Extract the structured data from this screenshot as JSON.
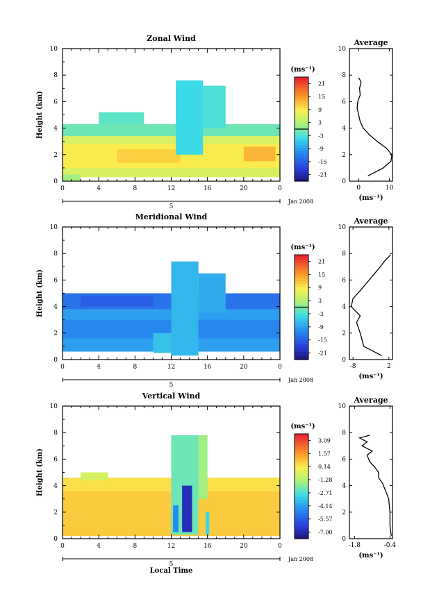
{
  "chart_data": [
    {
      "type": "heatmap",
      "title": "Zonal Wind",
      "ylabel": "Height (km)",
      "xlabel": "",
      "xlim": [
        0,
        24
      ],
      "ylim": [
        0,
        10
      ],
      "xticks": [
        "0",
        "4",
        "8",
        "12",
        "16",
        "20",
        "0"
      ],
      "yticks": [
        "0",
        "2",
        "4",
        "6",
        "8",
        "10"
      ],
      "date_marker": "5",
      "date_label": "Jan 2008",
      "colorbar": {
        "unit": "(ms⁻¹)",
        "ticks": [
          "21",
          "15",
          "9",
          "3",
          "-3",
          "-9",
          "-15",
          "-21"
        ],
        "min": -24,
        "max": 24,
        "zero_line": 0
      },
      "regions": [
        {
          "x0": 0.0,
          "x1": 24.0,
          "y0": 0.3,
          "y1": 3.4,
          "v": 6
        },
        {
          "x0": 0.0,
          "x1": 24.0,
          "y0": 1.0,
          "y1": 2.8,
          "v": 9
        },
        {
          "x0": 6.0,
          "x1": 13.0,
          "y0": 1.4,
          "y1": 2.4,
          "v": 11
        },
        {
          "x0": 20.0,
          "x1": 23.5,
          "y0": 1.5,
          "y1": 2.6,
          "v": 13
        },
        {
          "x0": 0.0,
          "x1": 24.0,
          "y0": 3.4,
          "y1": 4.3,
          "v": -1
        },
        {
          "x0": 4.0,
          "x1": 9.0,
          "y0": 4.3,
          "y1": 5.2,
          "v": -2
        },
        {
          "x0": 12.5,
          "x1": 15.5,
          "y0": 2.0,
          "y1": 7.6,
          "v": -4
        },
        {
          "x0": 15.5,
          "x1": 18.0,
          "y0": 4.0,
          "y1": 7.2,
          "v": -3
        },
        {
          "x0": 0.0,
          "x1": 2.0,
          "y0": 0.0,
          "y1": 0.5,
          "v": 2
        }
      ],
      "average": {
        "title": "Average",
        "xlabel": "(ms⁻¹)",
        "xlim": [
          -3,
          11
        ],
        "xticks": [
          0,
          10
        ],
        "ylim": [
          0,
          10
        ],
        "yticks": [
          0,
          2,
          4,
          6,
          8,
          10
        ],
        "profile": [
          [
            0.4,
            3
          ],
          [
            1.0,
            8
          ],
          [
            1.5,
            10.5
          ],
          [
            2.0,
            10.8
          ],
          [
            2.5,
            9
          ],
          [
            3.0,
            6
          ],
          [
            3.5,
            3.5
          ],
          [
            4.0,
            1.5
          ],
          [
            4.5,
            0.5
          ],
          [
            5.0,
            0
          ],
          [
            5.5,
            -0.5
          ],
          [
            6.0,
            -0.3
          ],
          [
            6.5,
            0.5
          ],
          [
            7.0,
            0.3
          ],
          [
            7.5,
            0.8
          ],
          [
            7.8,
            0
          ]
        ]
      }
    },
    {
      "type": "heatmap",
      "title": "Meridional Wind",
      "ylabel": "Height (km)",
      "xlabel": "",
      "xlim": [
        0,
        24
      ],
      "ylim": [
        0,
        10
      ],
      "xticks": [
        "0",
        "4",
        "8",
        "12",
        "16",
        "20",
        "0"
      ],
      "yticks": [
        "0",
        "2",
        "4",
        "6",
        "8",
        "10"
      ],
      "date_marker": "5",
      "date_label": "Jan 2008",
      "colorbar": {
        "unit": "(ms⁻¹)",
        "ticks": [
          "21",
          "15",
          "9",
          "3",
          "-3",
          "-9",
          "-15",
          "-21"
        ],
        "min": -24,
        "max": 24,
        "zero_line": 0
      },
      "regions": [
        {
          "x0": 0.0,
          "x1": 24.0,
          "y0": 0.6,
          "y1": 4.0,
          "v": -9
        },
        {
          "x0": 0.0,
          "x1": 24.0,
          "y0": 1.6,
          "y1": 3.0,
          "v": -11
        },
        {
          "x0": 0.0,
          "x1": 24.0,
          "y0": 3.8,
          "y1": 5.0,
          "v": -13
        },
        {
          "x0": 2.0,
          "x1": 10.0,
          "y0": 4.0,
          "y1": 4.8,
          "v": -15
        },
        {
          "x0": 12.0,
          "x1": 15.0,
          "y0": 0.3,
          "y1": 7.4,
          "v": -7
        },
        {
          "x0": 15.0,
          "x1": 18.0,
          "y0": 3.5,
          "y1": 6.5,
          "v": -8
        },
        {
          "x0": 10.0,
          "x1": 12.0,
          "y0": 0.5,
          "y1": 2.0,
          "v": -6
        }
      ],
      "average": {
        "title": "Average",
        "xlabel": "(ms⁻¹)",
        "xlim": [
          -9,
          3
        ],
        "xticks": [
          -8,
          2
        ],
        "ylim": [
          0,
          10
        ],
        "yticks": [
          0,
          2,
          4,
          6,
          8,
          10
        ],
        "profile": [
          [
            0.3,
            0
          ],
          [
            1.0,
            -5
          ],
          [
            2.0,
            -6
          ],
          [
            2.8,
            -7
          ],
          [
            3.3,
            -6
          ],
          [
            4.0,
            -8.5
          ],
          [
            4.6,
            -8
          ],
          [
            5.2,
            -6
          ],
          [
            6.0,
            -3.5
          ],
          [
            6.8,
            -1
          ],
          [
            7.5,
            1
          ],
          [
            7.9,
            2.5
          ]
        ]
      }
    },
    {
      "type": "heatmap",
      "title": "Vertical Wind",
      "ylabel": "Height (km)",
      "xlabel": "Local Time",
      "xlim": [
        0,
        24
      ],
      "ylim": [
        0,
        10
      ],
      "xticks": [
        "0",
        "4",
        "8",
        "12",
        "16",
        "20",
        "0"
      ],
      "yticks": [
        "0",
        "2",
        "4",
        "6",
        "8",
        "10"
      ],
      "date_marker": "5",
      "date_label": "Jan 2008",
      "colorbar": {
        "unit": "(ms⁻¹)",
        "ticks": [
          "3.09",
          "1.57",
          "0.14",
          "-1.28",
          "-2.71",
          "-4.14",
          "-5.57",
          "-7.00"
        ],
        "min": -7.7,
        "max": 3.8,
        "zero_line": null
      },
      "regions": [
        {
          "x0": 0.0,
          "x1": 24.0,
          "y0": 0.2,
          "y1": 3.6,
          "v": 0.8
        },
        {
          "x0": 0.0,
          "x1": 24.0,
          "y0": 3.6,
          "y1": 4.6,
          "v": 0.4
        },
        {
          "x0": 2.0,
          "x1": 5.0,
          "y0": 4.4,
          "y1": 5.0,
          "v": -0.6
        },
        {
          "x0": 12.0,
          "x1": 15.0,
          "y0": 0.3,
          "y1": 7.8,
          "v": -2.2
        },
        {
          "x0": 12.2,
          "x1": 12.8,
          "y0": 0.5,
          "y1": 2.5,
          "v": -4.5
        },
        {
          "x0": 13.2,
          "x1": 14.3,
          "y0": 0.5,
          "y1": 4.0,
          "v": -6.8
        },
        {
          "x0": 15.0,
          "x1": 16.0,
          "y0": 3.0,
          "y1": 7.8,
          "v": -1.5
        },
        {
          "x0": 15.8,
          "x1": 16.2,
          "y0": 0.3,
          "y1": 2.0,
          "v": -3.0
        }
      ],
      "average": {
        "title": "Average",
        "xlabel": "(ms⁻¹)",
        "xlim": [
          -2.0,
          -0.3
        ],
        "xticks": [
          -1.8,
          -0.4
        ],
        "ylim": [
          0,
          10
        ],
        "yticks": [
          0,
          2,
          4,
          6,
          8,
          10
        ],
        "profile": [
          [
            0.2,
            -0.35
          ],
          [
            1.0,
            -0.4
          ],
          [
            2.0,
            -0.4
          ],
          [
            3.0,
            -0.45
          ],
          [
            3.5,
            -0.55
          ],
          [
            4.2,
            -0.7
          ],
          [
            4.6,
            -0.85
          ],
          [
            5.0,
            -0.85
          ],
          [
            5.4,
            -1.0
          ],
          [
            5.8,
            -1.2
          ],
          [
            6.3,
            -1.3
          ],
          [
            6.6,
            -1.1
          ],
          [
            7.0,
            -1.5
          ],
          [
            7.3,
            -1.3
          ],
          [
            7.6,
            -1.6
          ],
          [
            7.8,
            -1.2
          ]
        ]
      }
    }
  ]
}
